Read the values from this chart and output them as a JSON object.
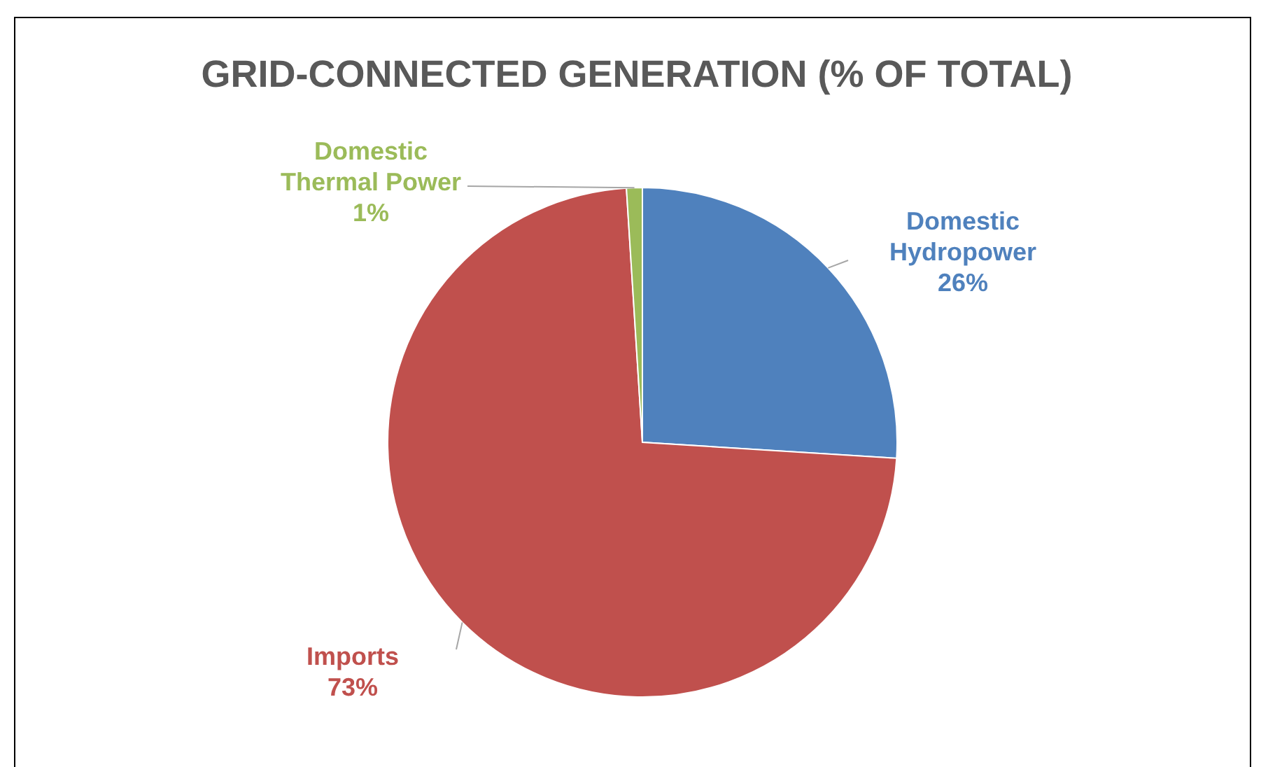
{
  "chart_data": {
    "type": "pie",
    "title": "GRID-CONNECTED GENERATION (% OF TOTAL)",
    "categories": [
      "Domestic Hydropower",
      "Imports",
      "Domestic Thermal Power"
    ],
    "values": [
      26,
      73,
      1
    ],
    "colors": [
      "#4f81bd",
      "#c0504d",
      "#9bbb59"
    ],
    "value_labels": [
      "26%",
      "73%",
      "1%"
    ]
  }
}
